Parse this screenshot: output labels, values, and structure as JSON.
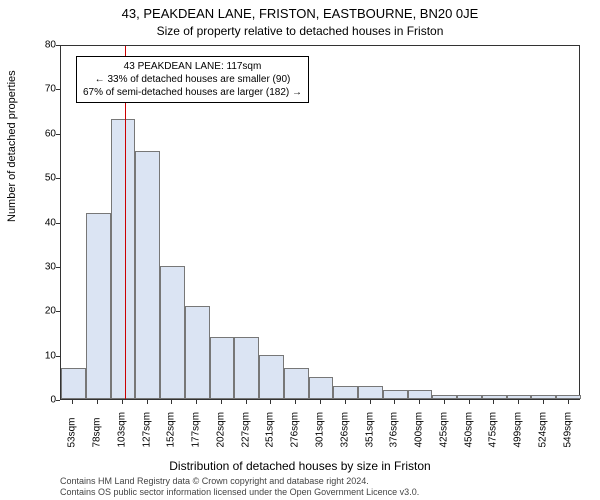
{
  "title_main": "43, PEAKDEAN LANE, FRISTON, EASTBOURNE, BN20 0JE",
  "title_sub": "Size of property relative to detached houses in Friston",
  "y_axis_label": "Number of detached properties",
  "x_axis_label": "Distribution of detached houses by size in Friston",
  "footer_line1": "Contains HM Land Registry data © Crown copyright and database right 2024.",
  "footer_line2": "Contains OS public sector information licensed under the Open Government Licence v3.0.",
  "chart": {
    "type": "histogram",
    "ylim": [
      0,
      80
    ],
    "ytick_step": 10,
    "y_ticks": [
      0,
      10,
      20,
      30,
      40,
      50,
      60,
      70,
      80
    ],
    "x_tick_labels": [
      "53sqm",
      "78sqm",
      "103sqm",
      "127sqm",
      "152sqm",
      "177sqm",
      "202sqm",
      "227sqm",
      "251sqm",
      "276sqm",
      "301sqm",
      "326sqm",
      "351sqm",
      "376sqm",
      "400sqm",
      "425sqm",
      "450sqm",
      "475sqm",
      "499sqm",
      "524sqm",
      "549sqm"
    ],
    "bar_values": [
      7,
      42,
      63,
      56,
      30,
      21,
      14,
      14,
      10,
      7,
      5,
      3,
      3,
      2,
      2,
      1,
      1,
      1,
      1,
      1,
      1
    ],
    "bar_fill_color": "#dbe4f3",
    "bar_border_color": "#777777",
    "background_color": "#ffffff",
    "axis_color": "#333333",
    "ref_line_value_index": 2.6,
    "ref_line_color": "#cc0000",
    "annotation": {
      "line1": "43 PEAKDEAN LANE: 117sqm",
      "line2": "← 33% of detached houses are smaller (90)",
      "line3": "67% of semi-detached houses are larger (182) →",
      "border_color": "#000000",
      "bg_color": "#ffffff",
      "fontsize": 10
    },
    "title_fontsize": 13,
    "subtitle_fontsize": 12,
    "axis_label_fontsize": 11,
    "tick_fontsize": 10
  }
}
